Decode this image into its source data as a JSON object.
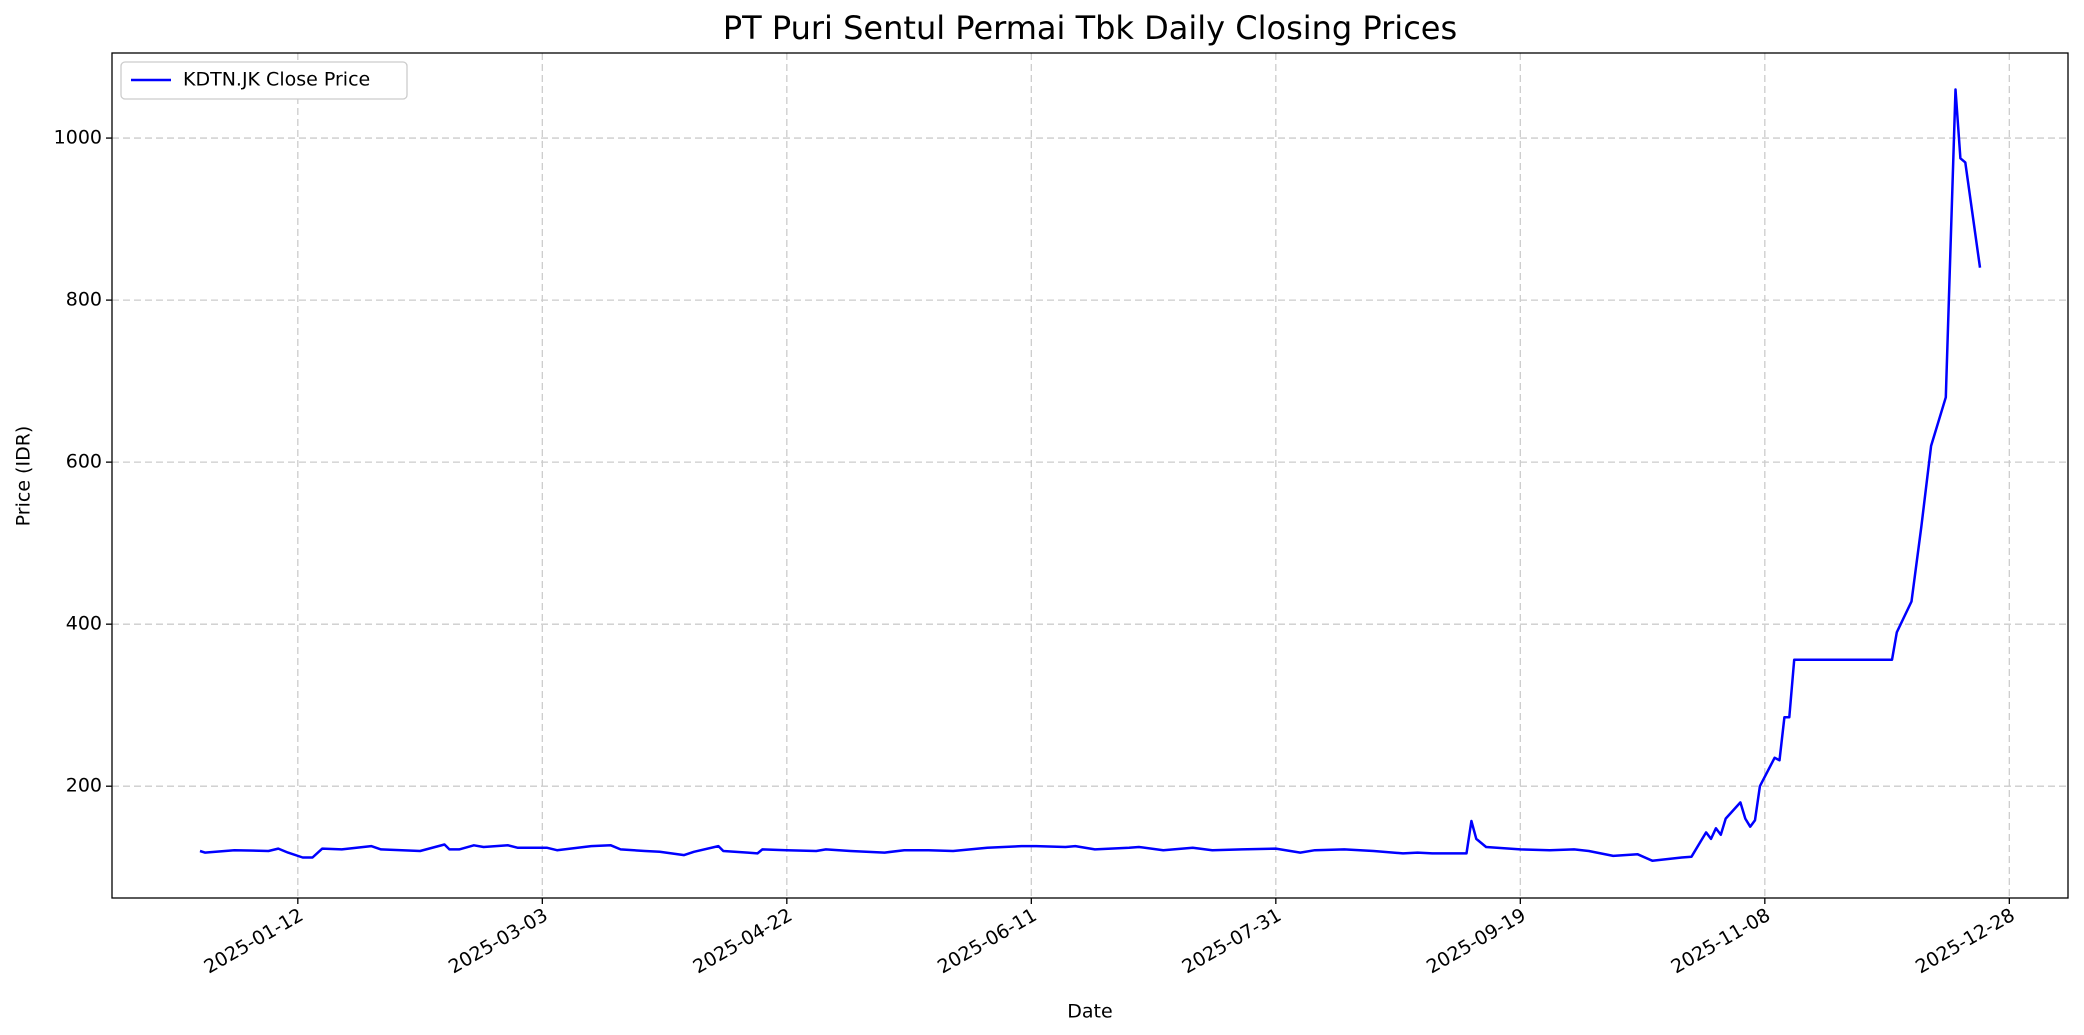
{
  "chart_data": {
    "type": "line",
    "title": "PT Puri Sentul Permai Tbk Daily Closing Prices",
    "x_label": "Date",
    "y_label": "Price (IDR)",
    "x": [
      "2024-12-23",
      "2024-12-24",
      "2024-12-30",
      "2025-01-06",
      "2025-01-08",
      "2025-01-10",
      "2025-01-13",
      "2025-01-15",
      "2025-01-17",
      "2025-01-21",
      "2025-01-27",
      "2025-01-29",
      "2025-02-06",
      "2025-02-11",
      "2025-02-12",
      "2025-02-14",
      "2025-02-17",
      "2025-02-19",
      "2025-02-24",
      "2025-02-26",
      "2025-03-04",
      "2025-03-06",
      "2025-03-13",
      "2025-03-17",
      "2025-03-19",
      "2025-03-24",
      "2025-03-27",
      "2025-04-01",
      "2025-04-03",
      "2025-04-08",
      "2025-04-09",
      "2025-04-14",
      "2025-04-16",
      "2025-04-17",
      "2025-04-22",
      "2025-04-28",
      "2025-04-30",
      "2025-05-05",
      "2025-05-12",
      "2025-05-16",
      "2025-05-21",
      "2025-05-26",
      "2025-06-02",
      "2025-06-09",
      "2025-06-12",
      "2025-06-18",
      "2025-06-20",
      "2025-06-24",
      "2025-07-01",
      "2025-07-03",
      "2025-07-08",
      "2025-07-14",
      "2025-07-18",
      "2025-07-24",
      "2025-07-31",
      "2025-08-05",
      "2025-08-08",
      "2025-08-14",
      "2025-08-20",
      "2025-08-26",
      "2025-08-29",
      "2025-09-01",
      "2025-09-08",
      "2025-09-09",
      "2025-09-10",
      "2025-09-12",
      "2025-09-19",
      "2025-09-25",
      "2025-09-30",
      "2025-10-03",
      "2025-10-08",
      "2025-10-13",
      "2025-10-16",
      "2025-10-22",
      "2025-10-24",
      "2025-10-27",
      "2025-10-28",
      "2025-10-29",
      "2025-10-30",
      "2025-10-31",
      "2025-11-03",
      "2025-11-04",
      "2025-11-05",
      "2025-11-06",
      "2025-11-07",
      "2025-11-10",
      "2025-11-11",
      "2025-11-12",
      "2025-11-13",
      "2025-11-14",
      "2025-12-04",
      "2025-12-05",
      "2025-12-08",
      "2025-12-10",
      "2025-12-12",
      "2025-12-15",
      "2025-12-17",
      "2025-12-18",
      "2025-12-19",
      "2025-12-22"
    ],
    "series": [
      {
        "name": "KDTN.JK Close Price",
        "color": "#0000ff",
        "values": [
          120,
          118,
          121,
          120,
          123,
          118,
          112,
          112,
          123,
          122,
          126,
          122,
          120,
          128,
          122,
          122,
          127,
          125,
          127,
          124,
          124,
          121,
          126,
          127,
          122,
          120,
          119,
          115,
          119,
          126,
          120,
          118,
          117,
          122,
          121,
          120,
          122,
          120,
          118,
          121,
          121,
          120,
          124,
          126,
          126,
          125,
          126,
          122,
          124,
          125,
          121,
          124,
          121,
          122,
          123,
          118,
          121,
          122,
          120,
          117,
          118,
          117,
          117,
          157,
          135,
          125,
          122,
          121,
          122,
          120,
          114,
          116,
          108,
          112,
          113,
          143,
          135,
          148,
          140,
          160,
          180,
          160,
          150,
          158,
          200,
          235,
          232,
          285,
          285,
          356,
          356,
          390,
          428,
          520,
          620,
          680,
          1060,
          975,
          970,
          840
        ]
      }
    ],
    "xlim": [
      "2024-12-05",
      "2026-01-09"
    ],
    "xticks": [
      "2025-01-12",
      "2025-03-03",
      "2025-04-22",
      "2025-06-11",
      "2025-07-31",
      "2025-09-19",
      "2025-11-08",
      "2025-12-28"
    ],
    "ylim": [
      62,
      1105
    ],
    "yticks": [
      200,
      400,
      600,
      800,
      1000
    ],
    "grid": true,
    "legend": "upper left"
  }
}
